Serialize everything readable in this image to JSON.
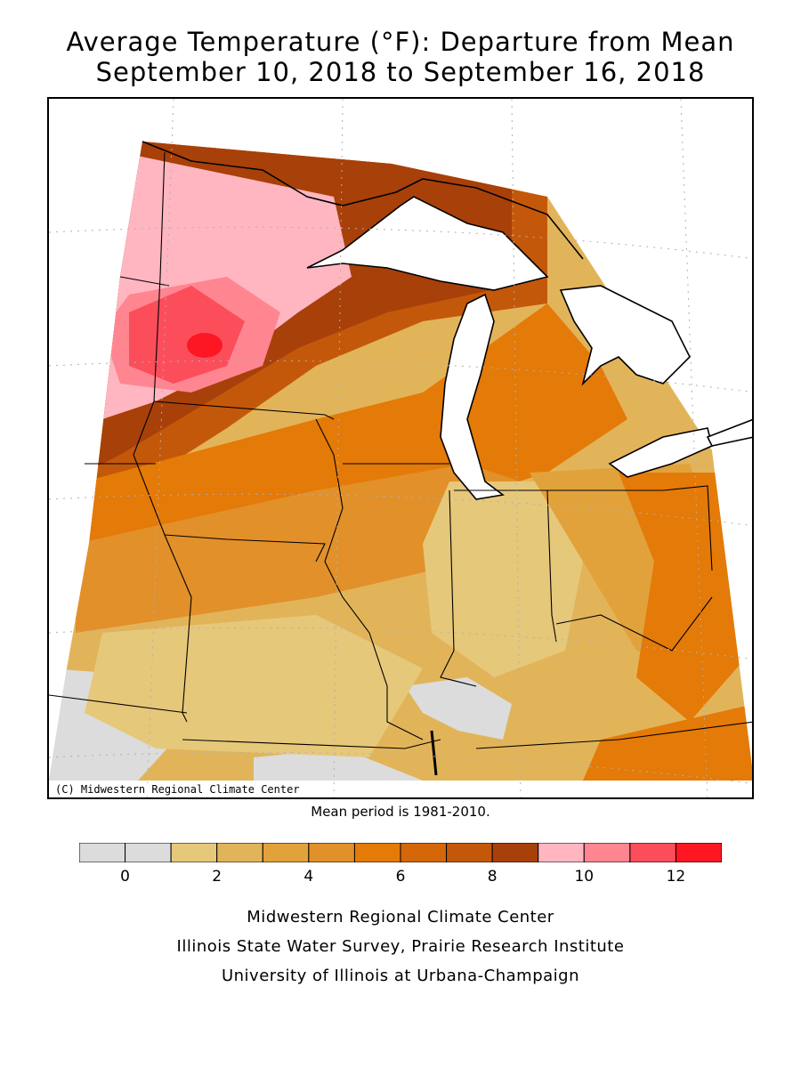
{
  "header": {
    "title_line1": "Average Temperature (°F): Departure from Mean",
    "title_line2": "September 10, 2018 to September 16, 2018"
  },
  "map": {
    "copyright": "(C) Midwestern Regional Climate Center",
    "mean_note": "Mean period is 1981-2010."
  },
  "legend": {
    "bins": [
      {
        "label": "-1 to 0",
        "color": "#dcdcdc"
      },
      {
        "label": "0 to 1",
        "color": "#dcdcdc"
      },
      {
        "label": "1 to 2",
        "color": "#e6c87a"
      },
      {
        "label": "2 to 3",
        "color": "#e2b45a"
      },
      {
        "label": "3 to 4",
        "color": "#e1a23b"
      },
      {
        "label": "4 to 5",
        "color": "#e2902a"
      },
      {
        "label": "5 to 6",
        "color": "#e47a08"
      },
      {
        "label": "6 to 7",
        "color": "#d56709"
      },
      {
        "label": "7 to 8",
        "color": "#c4580a"
      },
      {
        "label": "8 to 9",
        "color": "#a8400a"
      },
      {
        "label": "9 to 10",
        "color": "#ffb6c1"
      },
      {
        "label": "10 to 11",
        "color": "#ff8591"
      },
      {
        "label": "11 to 12",
        "color": "#fc4d5b"
      },
      {
        "label": "12 to 13",
        "color": "#fc1722"
      }
    ],
    "tick_labels": [
      "0",
      "2",
      "4",
      "6",
      "8",
      "10",
      "12"
    ]
  },
  "footer": {
    "line1": "Midwestern Regional Climate Center",
    "line2": "Illinois State Water Survey, Prairie Research Institute",
    "line3": "University of Illinois at Urbana-Champaign"
  }
}
